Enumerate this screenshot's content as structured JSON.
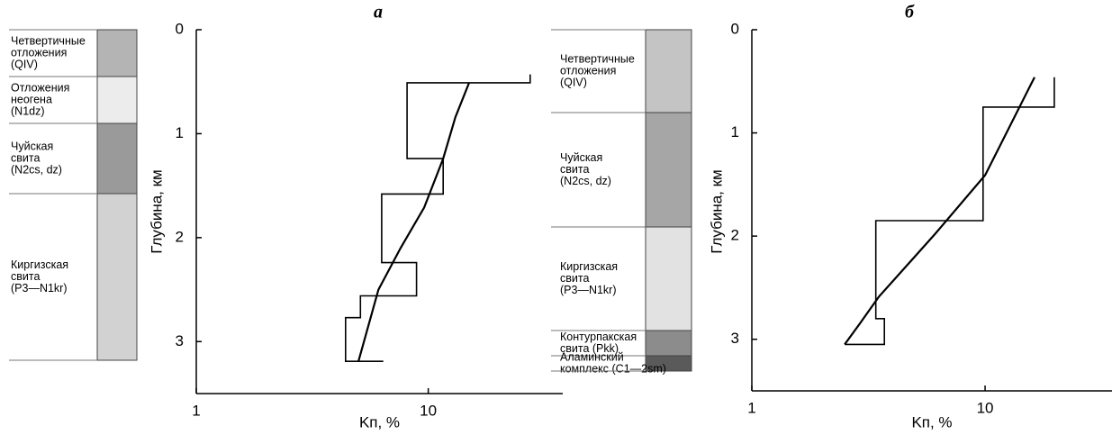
{
  "chart_data": [
    {
      "type": "line",
      "title": "а",
      "xlabel": "Kп, %",
      "ylabel": "Глубина, км",
      "xscale": "log",
      "y_inverted": true,
      "xlim": [
        1,
        38
      ],
      "ylim": [
        0,
        3.5
      ],
      "xticks": [
        1,
        10
      ],
      "yticks": [
        0,
        1,
        2,
        3
      ],
      "series": [
        {
          "color": "#000000",
          "x": [
            27.5,
            27.5,
            8.1,
            8.1,
            11.6,
            11.6,
            6.3,
            6.3,
            8.9,
            8.9,
            5.1,
            5.1,
            4.4,
            4.4,
            6.4
          ],
          "values": [
            0.43,
            0.51,
            0.51,
            1.24,
            1.24,
            1.58,
            1.58,
            2.24,
            2.24,
            2.56,
            2.56,
            2.77,
            2.77,
            3.19,
            3.19
          ]
        },
        {
          "color": "#000000",
          "x": [
            15.0,
            13.1,
            11.6,
            9.6,
            7.6,
            6.1,
            5.0
          ],
          "values": [
            0.51,
            0.84,
            1.24,
            1.71,
            2.1,
            2.5,
            3.19
          ]
        }
      ]
    },
    {
      "type": "line",
      "title": "б",
      "xlabel": "Kп, %",
      "ylabel": "Глубина, км",
      "xscale": "log",
      "y_inverted": true,
      "xlim": [
        1,
        35
      ],
      "ylim": [
        0,
        3.5
      ],
      "xticks": [
        1,
        10
      ],
      "yticks": [
        0,
        1,
        2,
        3
      ],
      "series": [
        {
          "color": "#000000",
          "x": [
            19.8,
            19.8,
            9.8,
            9.8,
            3.4,
            3.4,
            3.7,
            3.7,
            2.5
          ],
          "values": [
            0.46,
            0.75,
            0.75,
            1.85,
            1.85,
            2.8,
            2.8,
            3.05,
            3.05
          ]
        },
        {
          "color": "#000000",
          "x": [
            16.3,
            10.0,
            6.1,
            3.5,
            2.9,
            2.5
          ],
          "values": [
            0.46,
            1.41,
            1.98,
            2.59,
            2.85,
            3.05
          ]
        }
      ]
    }
  ],
  "columns": [
    {
      "layers": [
        {
          "lines": [
            "Четвертичные",
            "отложения",
            "(QIV)"
          ],
          "color": "#b4b4b4"
        },
        {
          "lines": [
            "Отложения",
            "неогена",
            "(N1dz)"
          ],
          "color": "#ececec"
        },
        {
          "lines": [
            "Чуйская",
            "свита",
            "(N2cs, dz)"
          ],
          "color": "#9a9a9a"
        },
        {
          "lines": [
            "Киргизская",
            "свита",
            "(P3—N1kr)"
          ],
          "color": "#d2d2d2"
        }
      ]
    },
    {
      "layers": [
        {
          "lines": [
            "Четвертичные",
            "отложения",
            "(QIV)"
          ],
          "color": "#c4c4c4"
        },
        {
          "lines": [
            "Чуйская",
            "свита",
            "(N2cs, dz)"
          ],
          "color": "#a6a6a6"
        },
        {
          "lines": [
            "Киргизская",
            "свита",
            "(P3—N1kr)"
          ],
          "color": "#e2e2e2"
        },
        {
          "lines": [
            "Контурпакская",
            "свита (Pkk)"
          ],
          "color": "#8c8c8c"
        },
        {
          "lines": [
            "Аламинский",
            "комплекс (C1—2sm)"
          ],
          "color": "#5a5a5a"
        }
      ]
    }
  ]
}
